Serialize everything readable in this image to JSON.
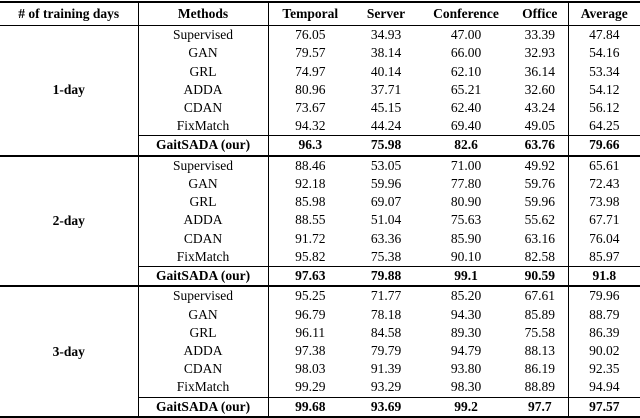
{
  "colors": {
    "background": "#ffffff",
    "text": "#000000",
    "rule": "#000000"
  },
  "table": {
    "headers": {
      "days": "# of training days",
      "methods": "Methods",
      "temporal": "Temporal",
      "server": "Server",
      "conference": "Conference",
      "office": "Office",
      "average": "Average"
    },
    "blocks": [
      {
        "day": "1-day",
        "rows": [
          {
            "method": "Supervised",
            "values": [
              "76.05",
              "34.93",
              "47.00",
              "33.39",
              "47.84"
            ],
            "highlight": false
          },
          {
            "method": "GAN",
            "values": [
              "79.57",
              "38.14",
              "66.00",
              "32.93",
              "54.16"
            ],
            "highlight": false
          },
          {
            "method": "GRL",
            "values": [
              "74.97",
              "40.14",
              "62.10",
              "36.14",
              "53.34"
            ],
            "highlight": false
          },
          {
            "method": "ADDA",
            "values": [
              "80.96",
              "37.71",
              "65.21",
              "32.60",
              "54.12"
            ],
            "highlight": false
          },
          {
            "method": "CDAN",
            "values": [
              "73.67",
              "45.15",
              "62.40",
              "43.24",
              "56.12"
            ],
            "highlight": false
          },
          {
            "method": "FixMatch",
            "values": [
              "94.32",
              "44.24",
              "69.40",
              "49.05",
              "64.25"
            ],
            "highlight": false
          },
          {
            "method": "GaitSADA (our)",
            "values": [
              "96.3",
              "75.98",
              "82.6",
              "63.76",
              "79.66"
            ],
            "highlight": true
          }
        ]
      },
      {
        "day": "2-day",
        "rows": [
          {
            "method": "Supervised",
            "values": [
              "88.46",
              "53.05",
              "71.00",
              "49.92",
              "65.61"
            ],
            "highlight": false
          },
          {
            "method": "GAN",
            "values": [
              "92.18",
              "59.96",
              "77.80",
              "59.76",
              "72.43"
            ],
            "highlight": false
          },
          {
            "method": "GRL",
            "values": [
              "85.98",
              "69.07",
              "80.90",
              "59.96",
              "73.98"
            ],
            "highlight": false
          },
          {
            "method": "ADDA",
            "values": [
              "88.55",
              "51.04",
              "75.63",
              "55.62",
              "67.71"
            ],
            "highlight": false
          },
          {
            "method": "CDAN",
            "values": [
              "91.72",
              "63.36",
              "85.90",
              "63.16",
              "76.04"
            ],
            "highlight": false
          },
          {
            "method": "FixMatch",
            "values": [
              "95.82",
              "75.38",
              "90.10",
              "82.58",
              "85.97"
            ],
            "highlight": false
          },
          {
            "method": "GaitSADA (our)",
            "values": [
              "97.63",
              "79.88",
              "99.1",
              "90.59",
              "91.8"
            ],
            "highlight": true
          }
        ]
      },
      {
        "day": "3-day",
        "rows": [
          {
            "method": "Supervised",
            "values": [
              "95.25",
              "71.77",
              "85.20",
              "67.61",
              "79.96"
            ],
            "highlight": false
          },
          {
            "method": "GAN",
            "values": [
              "96.79",
              "78.18",
              "94.30",
              "85.89",
              "88.79"
            ],
            "highlight": false
          },
          {
            "method": "GRL",
            "values": [
              "96.11",
              "84.58",
              "89.30",
              "75.58",
              "86.39"
            ],
            "highlight": false
          },
          {
            "method": "ADDA",
            "values": [
              "97.38",
              "79.79",
              "94.79",
              "88.13",
              "90.02"
            ],
            "highlight": false
          },
          {
            "method": "CDAN",
            "values": [
              "98.03",
              "91.39",
              "93.80",
              "86.19",
              "92.35"
            ],
            "highlight": false
          },
          {
            "method": "FixMatch",
            "values": [
              "99.29",
              "93.29",
              "98.30",
              "88.89",
              "94.94"
            ],
            "highlight": false
          },
          {
            "method": "GaitSADA (our)",
            "values": [
              "99.68",
              "93.69",
              "99.2",
              "97.7",
              "97.57"
            ],
            "highlight": true
          }
        ]
      }
    ]
  }
}
